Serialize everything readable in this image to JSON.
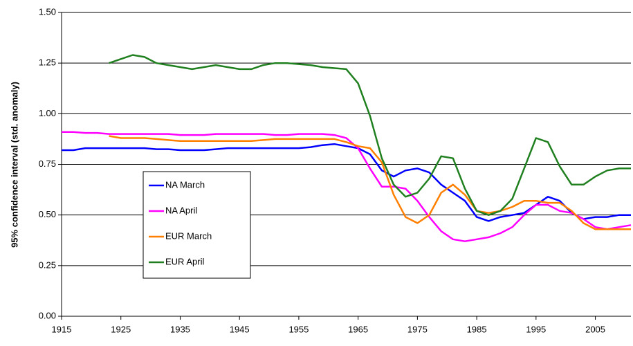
{
  "chart_data": {
    "type": "line",
    "y_label": "95% confidence interval (std. anomaly)",
    "x": [
      1915,
      1917,
      1919,
      1921,
      1923,
      1925,
      1927,
      1929,
      1931,
      1933,
      1935,
      1937,
      1939,
      1941,
      1943,
      1945,
      1947,
      1949,
      1951,
      1953,
      1955,
      1957,
      1959,
      1961,
      1963,
      1965,
      1967,
      1969,
      1971,
      1973,
      1975,
      1977,
      1979,
      1981,
      1983,
      1985,
      1987,
      1989,
      1991,
      1993,
      1995,
      1997,
      1999,
      2001,
      2003,
      2005,
      2007,
      2009,
      2011
    ],
    "series": [
      {
        "name": "NA March",
        "color": "#0000ff",
        "values": [
          0.82,
          0.82,
          0.83,
          0.83,
          0.83,
          0.83,
          0.83,
          0.83,
          0.825,
          0.825,
          0.82,
          0.82,
          0.82,
          0.825,
          0.83,
          0.83,
          0.83,
          0.83,
          0.83,
          0.83,
          0.83,
          0.835,
          0.845,
          0.85,
          0.84,
          0.83,
          0.8,
          0.72,
          0.69,
          0.72,
          0.73,
          0.71,
          0.65,
          0.61,
          0.57,
          0.49,
          0.47,
          0.49,
          0.5,
          0.51,
          0.55,
          0.59,
          0.57,
          0.51,
          0.48,
          0.49,
          0.49,
          0.5,
          0.5
        ]
      },
      {
        "name": "NA April",
        "color": "#ff00ff",
        "values": [
          0.91,
          0.91,
          0.905,
          0.905,
          0.9,
          0.9,
          0.9,
          0.9,
          0.9,
          0.9,
          0.895,
          0.895,
          0.895,
          0.9,
          0.9,
          0.9,
          0.9,
          0.9,
          0.895,
          0.895,
          0.9,
          0.9,
          0.9,
          0.895,
          0.88,
          0.83,
          0.73,
          0.64,
          0.64,
          0.63,
          0.57,
          0.49,
          0.42,
          0.38,
          0.37,
          0.38,
          0.39,
          0.41,
          0.44,
          0.5,
          0.55,
          0.55,
          0.52,
          0.51,
          0.48,
          0.44,
          0.43,
          0.44,
          0.45
        ]
      },
      {
        "name": "EUR March",
        "color": "#ff7f00",
        "values": [
          null,
          null,
          null,
          null,
          0.89,
          0.88,
          0.88,
          0.88,
          0.875,
          0.87,
          0.865,
          0.865,
          0.865,
          0.865,
          0.865,
          0.865,
          0.865,
          0.87,
          0.875,
          0.875,
          0.875,
          0.875,
          0.875,
          0.875,
          0.86,
          0.84,
          0.83,
          0.76,
          0.6,
          0.49,
          0.46,
          0.5,
          0.61,
          0.65,
          0.6,
          0.52,
          0.51,
          0.52,
          0.54,
          0.57,
          0.57,
          0.56,
          0.56,
          0.52,
          0.46,
          0.43,
          0.43,
          0.43,
          0.43
        ]
      },
      {
        "name": "EUR April",
        "color": "#208020",
        "values": [
          null,
          null,
          null,
          null,
          1.25,
          1.27,
          1.29,
          1.28,
          1.25,
          1.24,
          1.23,
          1.22,
          1.23,
          1.24,
          1.23,
          1.22,
          1.22,
          1.24,
          1.25,
          1.25,
          1.245,
          1.24,
          1.23,
          1.225,
          1.22,
          1.15,
          0.99,
          0.78,
          0.65,
          0.59,
          0.61,
          0.68,
          0.79,
          0.78,
          0.63,
          0.52,
          0.5,
          0.52,
          0.58,
          0.73,
          0.88,
          0.86,
          0.74,
          0.65,
          0.65,
          0.69,
          0.72,
          0.73,
          0.73
        ]
      }
    ],
    "xlim": [
      1915,
      2011
    ],
    "xticks": [
      1915,
      1925,
      1935,
      1945,
      1955,
      1965,
      1975,
      1985,
      1995,
      2005
    ],
    "ylim": [
      0,
      1.5
    ],
    "yticks": [
      {
        "value": 0,
        "label": "0.00"
      },
      {
        "value": 0.25,
        "label": "0.25"
      },
      {
        "value": 0.5,
        "label": "0.50"
      },
      {
        "value": 0.75,
        "label": "0.75"
      },
      {
        "value": 1,
        "label": "1.00"
      },
      {
        "value": 1.25,
        "label": "1.25"
      },
      {
        "value": 1.5,
        "label": "1.50"
      }
    ],
    "grid": true,
    "legend": "center-left"
  }
}
